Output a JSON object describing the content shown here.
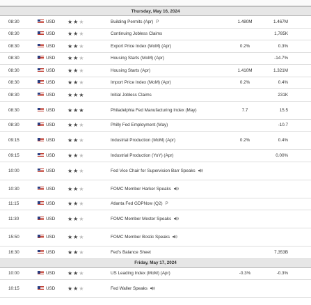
{
  "calendar": {
    "days": [
      {
        "date": "Thursday, May 16, 2024",
        "events": [
          {
            "time": "08:30",
            "currency": "USD",
            "importance": 2,
            "event": "Building Permits (Apr)",
            "flag": "P",
            "forecast": "1.480M",
            "previous": "1.467M"
          },
          {
            "time": "08:30",
            "currency": "USD",
            "importance": 2,
            "event": "Continuing Jobless Claims",
            "previous": "1,785K"
          },
          {
            "time": "08:30",
            "currency": "USD",
            "importance": 2,
            "event": "Export Price Index (MoM) (Apr)",
            "forecast": "0.2%",
            "previous": "0.3%"
          },
          {
            "time": "08:30",
            "currency": "USD",
            "importance": 2,
            "event": "Housing Starts (MoM) (Apr)",
            "previous": "-14.7%"
          },
          {
            "time": "08:30",
            "currency": "USD",
            "importance": 2,
            "event": "Housing Starts (Apr)",
            "forecast": "1.410M",
            "previous": "1.321M"
          },
          {
            "time": "08:30",
            "currency": "USD",
            "importance": 2,
            "event": "Import Price Index (MoM) (Apr)",
            "forecast": "0.2%",
            "previous": "0.4%"
          },
          {
            "time": "08:30",
            "currency": "USD",
            "importance": 3,
            "event": "Initial Jobless Claims",
            "previous": "231K"
          },
          {
            "time": "08:30",
            "currency": "USD",
            "importance": 3,
            "event": "Philadelphia Fed Manufacturing Index (May)",
            "forecast": "7.7",
            "previous": "15.5"
          },
          {
            "time": "08:30",
            "currency": "USD",
            "importance": 2,
            "event": "Philly Fed Employment (May)",
            "previous": "-10.7"
          },
          {
            "time": "09:15",
            "currency": "USD",
            "importance": 2,
            "event": "Industrial Production (MoM) (Apr)",
            "forecast": "0.2%",
            "previous": "0.4%"
          },
          {
            "time": "09:15",
            "currency": "USD",
            "importance": 2,
            "event": "Industrial Production (YoY) (Apr)",
            "previous": "0.00%"
          },
          {
            "time": "10:00",
            "currency": "USD",
            "importance": 2,
            "event": "Fed Vice Chair for Supervision Barr Speaks",
            "speech": true
          },
          {
            "time": "10:30",
            "currency": "USD",
            "importance": 2,
            "event": "FOMC Member Harker Speaks",
            "speech": true
          },
          {
            "time": "11:15",
            "currency": "USD",
            "importance": 2,
            "event": "Atlanta Fed GDPNow (Q2)",
            "flag": "P"
          },
          {
            "time": "11:30",
            "currency": "USD",
            "importance": 2,
            "event": "FOMC Member Mester Speaks",
            "speech": true
          },
          {
            "time": "15:50",
            "currency": "USD",
            "importance": 2,
            "event": "FOMC Member Bostic Speaks",
            "speech": true
          },
          {
            "time": "16:30",
            "currency": "USD",
            "importance": 2,
            "event": "Fed's Balance Sheet",
            "previous": "7,353B"
          }
        ]
      },
      {
        "date": "Friday, May 17, 2024",
        "events": [
          {
            "time": "10:00",
            "currency": "USD",
            "importance": 2,
            "event": "US Leading Index (MoM) (Apr)",
            "forecast": "-0.3%",
            "previous": "-0.3%"
          },
          {
            "time": "10:15",
            "currency": "USD",
            "importance": 2,
            "event": "Fed Waller Speaks",
            "speech": true
          }
        ]
      }
    ]
  }
}
